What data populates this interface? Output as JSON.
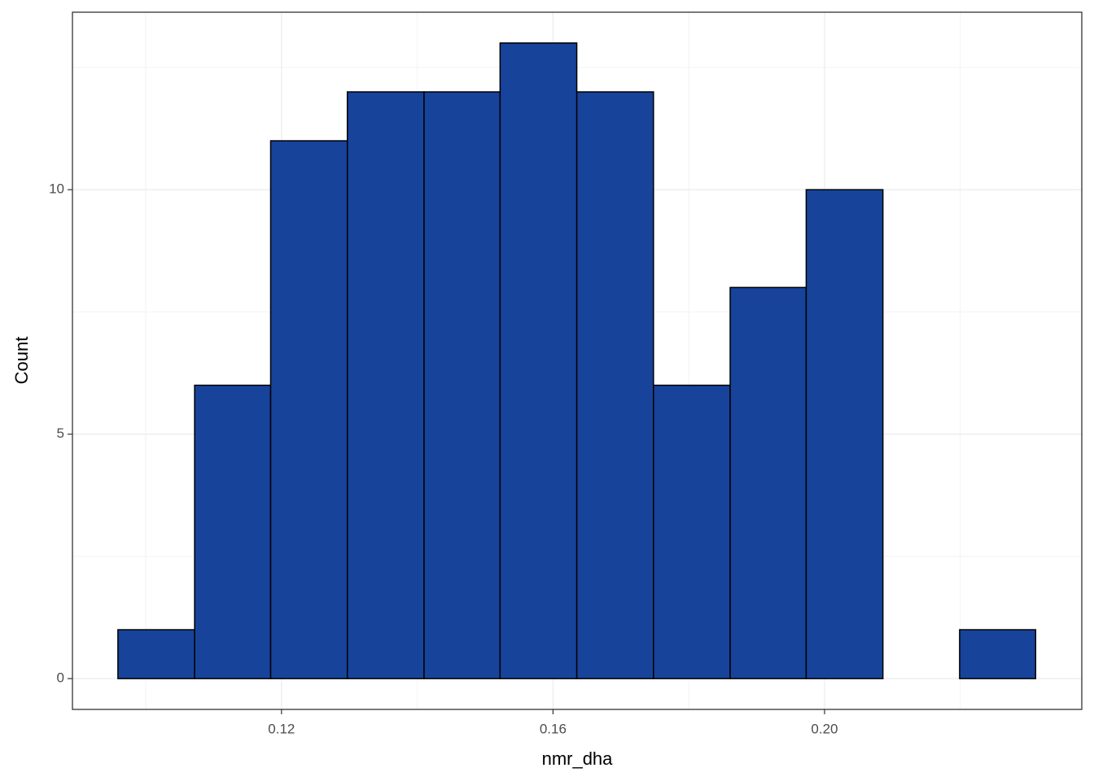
{
  "chart_data": {
    "type": "histogram",
    "x_label": "nmr_dha",
    "y_label": "Count",
    "bins": [
      0.0959,
      0.1072,
      0.1184,
      0.1297,
      0.141,
      0.1522,
      0.1635,
      0.1748,
      0.1861,
      0.1973,
      0.2086,
      0.2199,
      0.2311
    ],
    "values": [
      1,
      6,
      11,
      12,
      12,
      13,
      12,
      6,
      8,
      10,
      0,
      1
    ],
    "color": "#17439b",
    "xlim": [
      0.0892,
      0.2379
    ],
    "ylim": [
      -0.63,
      13.63
    ],
    "xticks": [
      0.12,
      0.16,
      {
        "value": 0.2,
        "label": "0.20"
      }
    ],
    "yticks": [
      0,
      5,
      10
    ],
    "grid": true
  }
}
